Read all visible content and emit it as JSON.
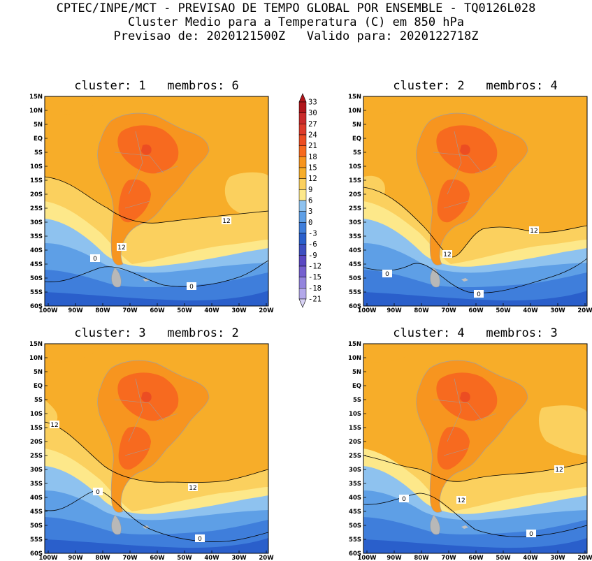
{
  "header": {
    "line1": "CPTEC/INPE/MCT - PREVISAO DE TEMPO GLOBAL POR ENSEMBLE - TQ0126L028",
    "line2": "Cluster Medio para a Temperatura (C) em 850 hPa",
    "line3": "Previsao de: 2020121500Z   Valido para: 2020122718Z"
  },
  "axes": {
    "lat_labels": [
      "15N",
      "10N",
      "5N",
      "EQ",
      "5S",
      "10S",
      "15S",
      "20S",
      "25S",
      "30S",
      "35S",
      "40S",
      "45S",
      "50S",
      "55S",
      "60S"
    ],
    "lon_labels": [
      "100W",
      "90W",
      "80W",
      "70W",
      "60W",
      "50W",
      "40W",
      "30W",
      "20W"
    ]
  },
  "colorbar": {
    "levels": [
      "33",
      "30",
      "27",
      "24",
      "21",
      "18",
      "15",
      "12",
      "9",
      "6",
      "3",
      "0",
      "-3",
      "-6",
      "-9",
      "-12",
      "-15",
      "-18",
      "-21"
    ],
    "colors": [
      "#b0151a",
      "#c92a2a",
      "#dd3b2a",
      "#ec4d22",
      "#f76a1f",
      "#f7951f",
      "#f7ad29",
      "#fbd05e",
      "#fde88a",
      "#8ec2ef",
      "#5e9fe6",
      "#3f7edb",
      "#2a5fcb",
      "#3e4fc0",
      "#5a48c2",
      "#7560cf",
      "#9384dd",
      "#b3a8ea",
      "#d8d2f4"
    ]
  },
  "clusters": [
    {
      "title": "cluster: 1   membros: 6",
      "contour_labels": [
        "12",
        "12",
        "0",
        "0"
      ]
    },
    {
      "title": "cluster: 2   membros: 4",
      "contour_labels": [
        "12",
        "12",
        "0",
        "0"
      ]
    },
    {
      "title": "cluster: 3   membros: 2",
      "contour_labels": [
        "12",
        "12",
        "0",
        "0"
      ]
    },
    {
      "title": "cluster: 4   membros: 3",
      "contour_labels": [
        "12",
        "12",
        "0",
        "0"
      ]
    }
  ]
}
